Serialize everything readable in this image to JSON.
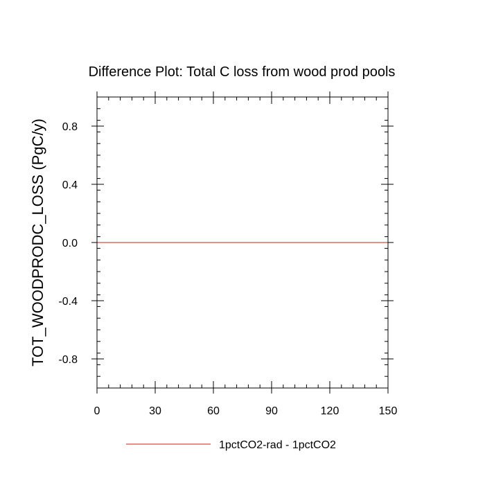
{
  "chart_data": {
    "type": "line",
    "title": "Difference Plot: Total C loss from wood prod pools",
    "ylabel": "TOT_WOODPRODC_LOSS  (PgC/y)",
    "xlabel": "",
    "xlim": [
      0,
      150
    ],
    "ylim": [
      -1.0,
      1.0
    ],
    "x_ticks": [
      0,
      30,
      60,
      90,
      120,
      150
    ],
    "x_tick_labels": [
      "0",
      "30",
      "60",
      "90",
      "120",
      "150"
    ],
    "y_ticks": [
      -0.8,
      -0.4,
      0.0,
      0.4,
      0.8
    ],
    "y_tick_labels": [
      "-0.8",
      "-0.4",
      "0.0",
      "0.4",
      "0.8"
    ],
    "grid": false,
    "legend_position": "bottom-center",
    "series": [
      {
        "name": "1pctCO2-rad - 1pctCO2",
        "color": "#e06666",
        "x": [
          0,
          150
        ],
        "y": [
          0.0,
          0.0
        ]
      }
    ]
  }
}
